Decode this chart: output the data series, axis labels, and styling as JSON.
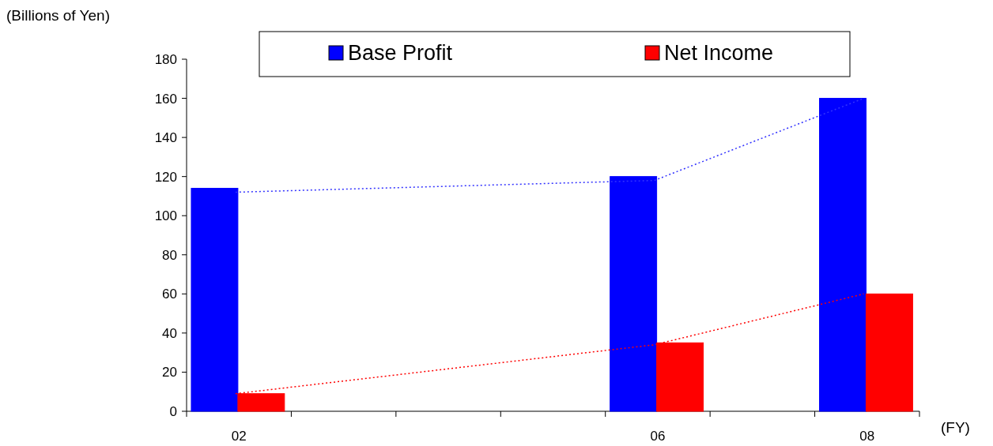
{
  "chart_data": {
    "type": "bar",
    "ylabel": "(Billions of Yen)",
    "xlabel": "(FY)",
    "categories": [
      "02",
      null,
      null,
      null,
      "06",
      null,
      "08"
    ],
    "series": [
      {
        "name": "Base Profit",
        "color": "#0000ff",
        "values": [
          114,
          null,
          null,
          null,
          120,
          null,
          160
        ]
      },
      {
        "name": "Net Income",
        "color": "#ff0000",
        "values": [
          9,
          null,
          null,
          null,
          35,
          null,
          60
        ]
      },
      {
        "type": "line",
        "color": "#3333ff",
        "line_style": "dotted",
        "values": [
          112,
          null,
          null,
          null,
          118,
          null,
          160
        ]
      },
      {
        "type": "line",
        "color": "#ff0000",
        "line_style": "dotted",
        "values": [
          9,
          null,
          null,
          null,
          34,
          null,
          60
        ]
      }
    ],
    "ylim": [
      0,
      180
    ],
    "yticks": [
      0,
      20,
      40,
      60,
      80,
      100,
      120,
      140,
      160,
      180
    ],
    "grid": false,
    "legend": "top"
  }
}
